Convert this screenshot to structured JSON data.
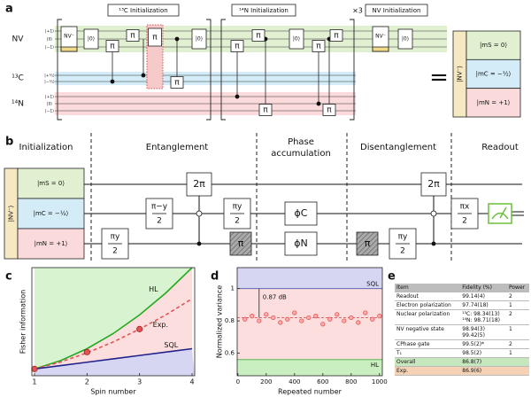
{
  "panel_labels": [
    "a",
    "b",
    "c",
    "d",
    "e"
  ],
  "circuit_a": {
    "headers": [
      "¹³C Initialization",
      "¹⁴N Initialization",
      "NV Initialization"
    ],
    "repeat": "×3",
    "rows": [
      "NV",
      "¹³C",
      "¹⁴N"
    ],
    "levels": [
      [
        "|+1⟩",
        "|0⟩",
        "|−1⟩"
      ],
      [
        "|+½⟩",
        "|−½⟩"
      ],
      [
        "|+1⟩",
        "|0⟩",
        "|−1⟩"
      ]
    ],
    "gates": {
      "nv": "NV⁻",
      "reset": "|0⟩",
      "pi": "π"
    },
    "equals": "=",
    "state": {
      "nv": "|NV⁻⟩",
      "levels": [
        "|mS = 0⟩",
        "|mC = −½⟩",
        "|mN = +1⟩"
      ]
    }
  },
  "circuit_b": {
    "stages": [
      "Initialization",
      "Entanglement",
      [
        "Phase",
        "accumulation"
      ],
      "Disentanglement",
      "Readout"
    ],
    "gates": {
      "half_y": [
        "πy",
        "2"
      ],
      "half_my": [
        "π−y",
        "2"
      ],
      "half_x": [
        "πx",
        "2"
      ],
      "two_pi": "2π",
      "pi": "π",
      "phi_c": "ϕC",
      "phi_n": "ϕN"
    }
  },
  "chart_data": [
    {
      "type": "line",
      "xlabel": "Spin number",
      "ylabel": "Fisher information",
      "xlim": [
        0.95,
        4.05
      ],
      "ylim": [
        0,
        16
      ],
      "xticks": [
        1,
        2,
        3,
        4
      ],
      "x": [
        1,
        1.5,
        2,
        2.5,
        3,
        3.5,
        4
      ],
      "series": [
        {
          "name": "HL",
          "color": "#22aa22",
          "values": [
            1,
            2.25,
            4,
            6.25,
            9,
            12.25,
            16
          ]
        },
        {
          "name": "Exp.",
          "color": "#e05555",
          "dashed": true,
          "values": [
            1,
            2.04,
            3.39,
            5.0,
            6.9,
            9.0,
            11.4
          ]
        },
        {
          "name": "SQL",
          "color": "#22228a",
          "values": [
            1,
            1.5,
            2,
            2.5,
            3,
            3.5,
            4
          ]
        }
      ],
      "region_colors": [
        "#d8f3cf",
        "#fddede",
        "#d6d6f3"
      ],
      "points": {
        "x": [
          1,
          2,
          3
        ],
        "values": [
          1,
          3.5,
          6.9
        ],
        "color": "#e05555"
      }
    },
    {
      "type": "scatter",
      "xlabel": "Repeated number",
      "ylabel": "Normalized variance",
      "xlim": [
        -5,
        1020
      ],
      "ylim": [
        0.46,
        1.13
      ],
      "xticks": [
        0,
        200,
        400,
        600,
        800,
        1000
      ],
      "yticks": [
        0.6,
        0.8,
        1
      ],
      "x": [
        50,
        100,
        150,
        200,
        250,
        300,
        350,
        400,
        450,
        500,
        550,
        600,
        650,
        700,
        750,
        800,
        850,
        900,
        950,
        1000
      ],
      "values": [
        0.81,
        0.83,
        0.8,
        0.84,
        0.82,
        0.79,
        0.81,
        0.85,
        0.8,
        0.82,
        0.83,
        0.78,
        0.81,
        0.84,
        0.8,
        0.82,
        0.79,
        0.85,
        0.81,
        0.83
      ],
      "color": "#e05555",
      "mean": 0.82,
      "annotation": "0.87 dB",
      "bands": [
        {
          "name": "SQL",
          "level": 1,
          "color": "#d6d6f3"
        },
        {
          "name": "HL",
          "level": 0.56,
          "color": "#c9efc0"
        }
      ],
      "middle_color": "#fddede"
    }
  ],
  "table": {
    "columns": [
      "Item",
      "Fidelity (%)",
      "Power"
    ],
    "rows": [
      [
        [
          "Readout"
        ],
        [
          "99.14(4)"
        ],
        [
          "2"
        ]
      ],
      [
        [
          "Electron polarization"
        ],
        [
          "97.74(18)"
        ],
        [
          "1"
        ]
      ],
      [
        [
          "Nuclear polarization"
        ],
        [
          "¹³C: 98.34(13)",
          "¹⁴N: 98.71(18)"
        ],
        [
          "2"
        ]
      ],
      [
        [
          "NV negative state"
        ],
        [
          "98.94(3)",
          "99.42(5)"
        ],
        [
          "1"
        ]
      ],
      [
        [
          "CPhase gate"
        ],
        [
          "99.5(2)*"
        ],
        [
          "2"
        ]
      ],
      [
        [
          "T₁"
        ],
        [
          "98.5(2)"
        ],
        [
          "1"
        ]
      ],
      [
        [
          "Overall"
        ],
        [
          "86.8(7)"
        ],
        []
      ],
      [
        [
          "Exp."
        ],
        [
          "86.9(6)"
        ],
        []
      ]
    ]
  }
}
